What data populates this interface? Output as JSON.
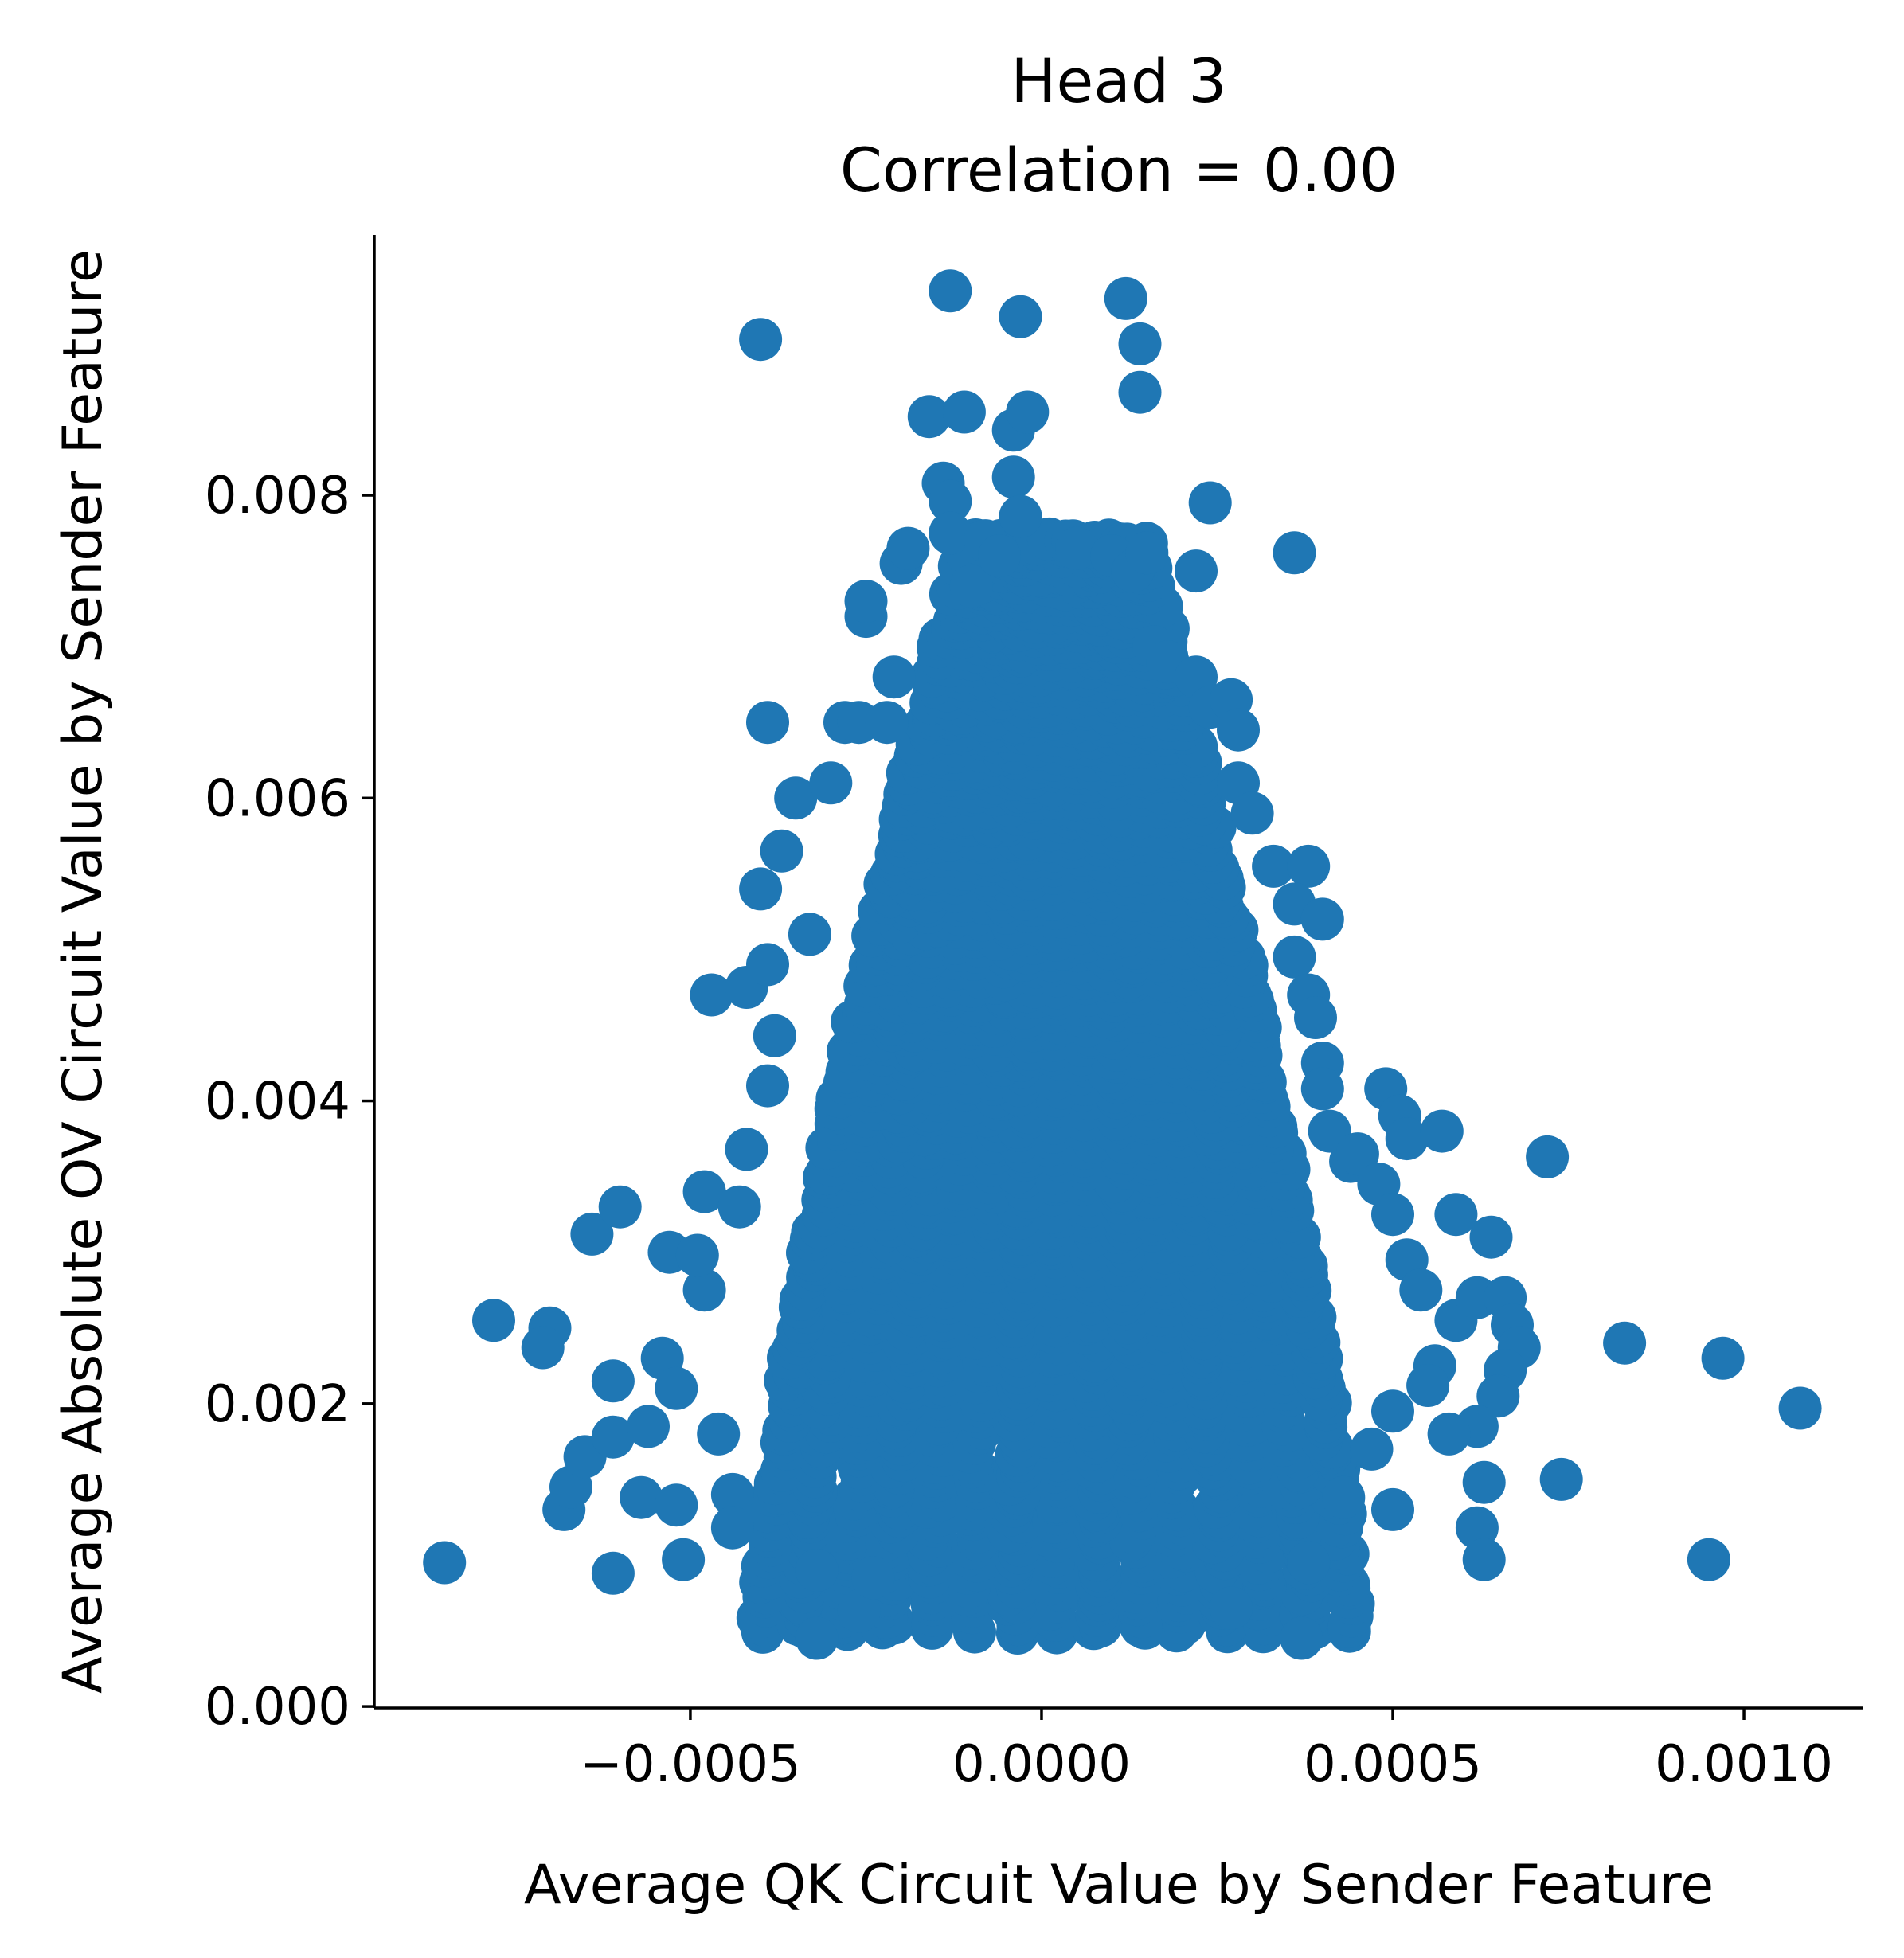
{
  "chart_data": {
    "type": "scatter",
    "title": [
      "Head 3",
      "Correlation = 0.00"
    ],
    "xlabel": "Average QK Circuit Value by Sender Feature",
    "ylabel": "Average Absolute OV Circuit Value by Sender Feature",
    "xlim": [
      -0.00095,
      0.00117
    ],
    "ylim": [
      -1e-05,
      0.00972
    ],
    "xticks": [
      -0.0005,
      0.0,
      0.0005,
      0.001
    ],
    "xtick_labels": [
      "−0.0005",
      "0.0000",
      "0.0005",
      "0.0010"
    ],
    "yticks": [
      0.0,
      0.002,
      0.004,
      0.006,
      0.008
    ],
    "ytick_labels": [
      "0.000",
      "0.002",
      "0.004",
      "0.006",
      "0.008"
    ],
    "grid": false,
    "legend": "none",
    "point_color": "#1f77b4",
    "dense_region_note": "Thousands of overlapping points form a dense blob; outlier points listed individually.",
    "dense_region": {
      "x_center": 2e-05,
      "y_bottom": 0.0005,
      "y_top": 0.0077,
      "x_halfwidth_at_bottom": 0.00042,
      "x_halfwidth_at_top": 0.00012
    },
    "points": [
      [
        -0.00085,
        0.00095
      ],
      [
        -0.00078,
        0.00255
      ],
      [
        -0.0007,
        0.0025
      ],
      [
        -0.00071,
        0.00237
      ],
      [
        -0.00068,
        0.0013
      ],
      [
        -0.00067,
        0.00145
      ],
      [
        -0.00065,
        0.00165
      ],
      [
        -0.00064,
        0.00312
      ],
      [
        -0.0006,
        0.0033
      ],
      [
        -0.00061,
        0.00088
      ],
      [
        -0.00061,
        0.00178
      ],
      [
        -0.00061,
        0.00215
      ],
      [
        -0.00057,
        0.00138
      ],
      [
        -0.00056,
        0.00185
      ],
      [
        -0.00054,
        0.0023
      ],
      [
        -0.00053,
        0.003
      ],
      [
        -0.00052,
        0.0021
      ],
      [
        -0.00052,
        0.00133
      ],
      [
        -0.00051,
        0.00097
      ],
      [
        -0.00048,
        0.00275
      ],
      [
        -0.00047,
        0.0047
      ],
      [
        -0.00048,
        0.0034
      ],
      [
        -0.00049,
        0.00298
      ],
      [
        -0.00046,
        0.0018
      ],
      [
        -0.00044,
        0.0014
      ],
      [
        -0.00044,
        0.00118
      ],
      [
        -0.00043,
        0.0033
      ],
      [
        -0.00042,
        0.00475
      ],
      [
        -0.00042,
        0.00368
      ],
      [
        -0.00039,
        0.0041
      ],
      [
        -0.00039,
        0.0049
      ],
      [
        -0.0004,
        0.0054
      ],
      [
        -0.00039,
        0.0065
      ],
      [
        -0.00038,
        0.00443
      ],
      [
        -0.00037,
        0.00565
      ],
      [
        -0.00035,
        0.006
      ],
      [
        -0.00033,
        0.0051
      ],
      [
        -0.00032,
        0.0009
      ],
      [
        -0.00032,
        0.00045
      ],
      [
        -0.0003,
        0.0061
      ],
      [
        -0.00028,
        0.0065
      ],
      [
        -0.00026,
        0.0065
      ],
      [
        -0.00026,
        0.00063
      ],
      [
        -0.00025,
        0.0072
      ],
      [
        -0.00025,
        0.0073
      ],
      [
        -0.00024,
        0.00085
      ],
      [
        -0.00022,
        0.0065
      ],
      [
        -0.00021,
        0.0068
      ],
      [
        -0.0002,
        0.00755
      ],
      [
        -0.00019,
        0.00765
      ],
      [
        -0.00016,
        0.00852
      ],
      [
        -0.00014,
        0.00808
      ],
      [
        -0.00013,
        0.00796
      ],
      [
        -0.00013,
        0.00935
      ],
      [
        -0.00013,
        0.00775
      ],
      [
        -0.00011,
        0.00855
      ],
      [
        -0.0001,
        0.0074
      ],
      [
        -8e-05,
        0.0077
      ],
      [
        -6e-05,
        0.0076
      ],
      [
        -4e-05,
        0.00843
      ],
      [
        -4e-05,
        0.00812
      ],
      [
        -3e-05,
        0.00918
      ],
      [
        -3e-05,
        0.00786
      ],
      [
        -2e-05,
        0.00855
      ],
      [
        -0.0004,
        0.00903
      ],
      [
        5e-05,
        0.00765
      ],
      [
        0.0001,
        0.0076
      ],
      [
        0.00013,
        0.0075
      ],
      [
        0.00012,
        0.0093
      ],
      [
        0.00014,
        0.009
      ],
      [
        0.00014,
        0.00868
      ],
      [
        0.00015,
        0.00762
      ],
      [
        0.00016,
        0.007
      ],
      [
        0.00018,
        0.0069
      ],
      [
        0.00022,
        0.0075
      ],
      [
        0.00024,
        0.00795
      ],
      [
        0.00022,
        0.0068
      ],
      [
        0.00024,
        0.0066
      ],
      [
        0.00027,
        0.00665
      ],
      [
        0.00028,
        0.00645
      ],
      [
        0.00028,
        0.0061
      ],
      [
        0.0003,
        0.0059
      ],
      [
        0.00033,
        0.00555
      ],
      [
        0.00036,
        0.00762
      ],
      [
        0.00038,
        0.00555
      ],
      [
        0.00036,
        0.0053
      ],
      [
        0.0004,
        0.0052
      ],
      [
        0.00036,
        0.00495
      ],
      [
        0.00038,
        0.0047
      ],
      [
        0.00039,
        0.00455
      ],
      [
        0.0004,
        0.00425
      ],
      [
        0.0004,
        0.00408
      ],
      [
        0.00041,
        0.0038
      ],
      [
        0.00044,
        0.0036
      ],
      [
        0.00045,
        0.00365
      ],
      [
        0.00048,
        0.00345
      ],
      [
        0.00049,
        0.00408
      ],
      [
        0.0005,
        0.00325
      ],
      [
        0.00051,
        0.0039
      ],
      [
        0.00052,
        0.00375
      ],
      [
        0.00052,
        0.00295
      ],
      [
        0.00054,
        0.00275
      ],
      [
        0.00057,
        0.0038
      ],
      [
        0.00059,
        0.00325
      ],
      [
        0.00059,
        0.00255
      ],
      [
        0.00062,
        0.0027
      ],
      [
        0.00064,
        0.0031
      ],
      [
        0.00066,
        0.0027
      ],
      [
        0.00067,
        0.00252
      ],
      [
        0.00068,
        0.00237
      ],
      [
        0.00066,
        0.00222
      ],
      [
        0.00065,
        0.00205
      ],
      [
        0.00062,
        0.00185
      ],
      [
        0.00058,
        0.0018
      ],
      [
        0.00056,
        0.00225
      ],
      [
        0.00055,
        0.00212
      ],
      [
        0.0005,
        0.00195
      ],
      [
        0.00047,
        0.0017
      ],
      [
        0.00043,
        0.00138
      ],
      [
        0.0005,
        0.0013
      ],
      [
        0.00063,
        0.00148
      ],
      [
        0.00062,
        0.00118
      ],
      [
        0.00063,
        0.00097
      ],
      [
        0.00038,
        0.00095
      ],
      [
        0.00037,
        0.00045
      ],
      [
        0.00027,
        0.00065
      ],
      [
        0.00072,
        0.00363
      ],
      [
        0.00083,
        0.0024
      ],
      [
        0.00074,
        0.0015
      ],
      [
        0.00095,
        0.00097
      ],
      [
        0.00097,
        0.0023
      ],
      [
        0.00108,
        0.00197
      ]
    ]
  }
}
